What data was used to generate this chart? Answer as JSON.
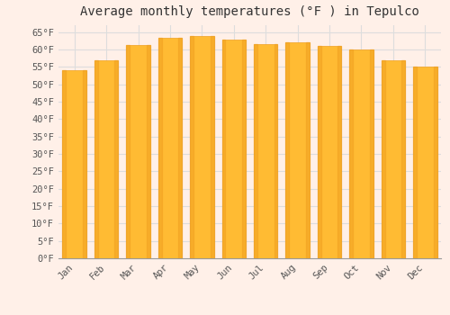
{
  "title": "Average monthly temperatures (°F ) in Tepulco",
  "months": [
    "Jan",
    "Feb",
    "Mar",
    "Apr",
    "May",
    "Jun",
    "Jul",
    "Aug",
    "Sep",
    "Oct",
    "Nov",
    "Dec"
  ],
  "values": [
    54.1,
    57.0,
    61.2,
    63.3,
    64.0,
    62.8,
    61.5,
    62.2,
    61.0,
    59.9,
    57.0,
    55.0
  ],
  "bar_color_main": "#FFBB33",
  "bar_color_left": "#F0A020",
  "bar_color_right": "#F0A020",
  "background_color": "#FFF0E8",
  "plot_bg_color": "#FFF0E8",
  "grid_color": "#dddddd",
  "yticks": [
    0,
    5,
    10,
    15,
    20,
    25,
    30,
    35,
    40,
    45,
    50,
    55,
    60,
    65
  ],
  "ylim": [
    0,
    67
  ],
  "ylabel_suffix": "°F",
  "title_fontsize": 10,
  "tick_fontsize": 7.5,
  "font_family": "monospace"
}
